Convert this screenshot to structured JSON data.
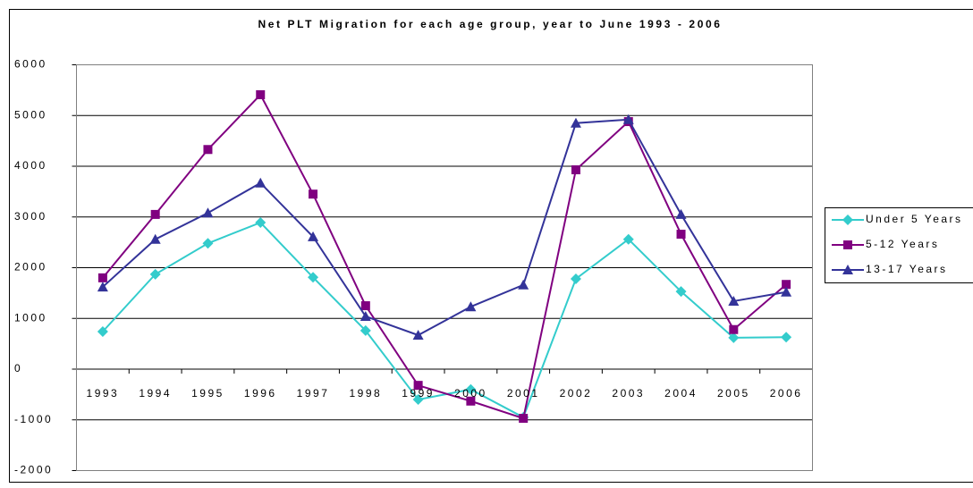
{
  "chart_data": {
    "type": "line",
    "title": "Net PLT Migration for each age group, year to June 1993 - 2006",
    "categories": [
      "1993",
      "1994",
      "1995",
      "1996",
      "1997",
      "1998",
      "1999",
      "2000",
      "2001",
      "2002",
      "2003",
      "2004",
      "2005",
      "2006"
    ],
    "series": [
      {
        "name": "Under 5 Years",
        "color": "#33cccc",
        "marker": "diamond",
        "values": [
          740,
          1870,
          2480,
          2890,
          1810,
          760,
          -600,
          -400,
          -950,
          1780,
          2560,
          1530,
          620,
          630
        ]
      },
      {
        "name": "5-12 Years",
        "color": "#800080",
        "marker": "square",
        "values": [
          1800,
          3050,
          4330,
          5410,
          3450,
          1250,
          -320,
          -630,
          -970,
          3930,
          4880,
          2660,
          780,
          1670
        ]
      },
      {
        "name": "13-17 Years",
        "color": "#333399",
        "marker": "triangle",
        "values": [
          1620,
          2560,
          3080,
          3670,
          2610,
          1040,
          670,
          1230,
          1660,
          4850,
          4920,
          3050,
          1340,
          1520
        ]
      }
    ],
    "ylim": [
      -2000,
      6000
    ],
    "yticks": [
      -2000,
      -1000,
      0,
      1000,
      2000,
      3000,
      4000,
      5000,
      6000
    ],
    "grid": true,
    "legend": "right"
  }
}
